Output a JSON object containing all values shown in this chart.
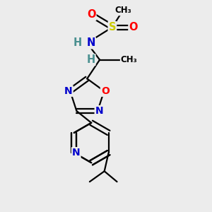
{
  "bg_color": "#ececec",
  "atom_colors": {
    "C": "#000000",
    "N": "#0000cc",
    "O": "#ff0000",
    "S": "#cccc00",
    "H": "#4a9090",
    "HN": "#4a9090"
  },
  "bond_color": "#000000",
  "bond_width": 1.6,
  "font_size": 10.5,
  "title": ""
}
